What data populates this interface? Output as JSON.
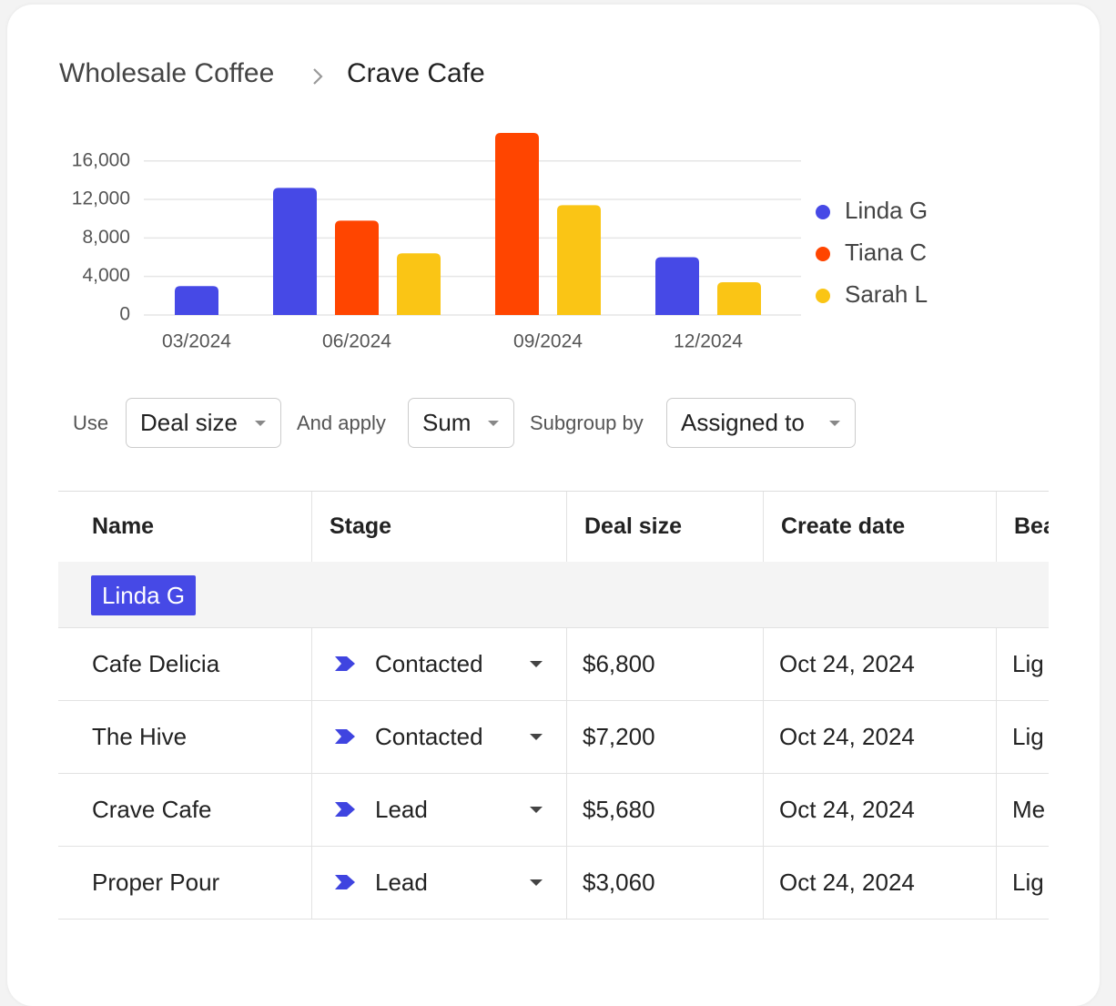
{
  "breadcrumb": {
    "parent": "Wholesale Coffee",
    "current": "Crave Cafe"
  },
  "chart_data": {
    "type": "bar",
    "categories": [
      "03/2024",
      "06/2024",
      "09/2024",
      "12/2024"
    ],
    "series": [
      {
        "name": "Linda G",
        "color": "#4649e6",
        "values": [
          3000,
          13200,
          null,
          6000
        ]
      },
      {
        "name": "Tiana C",
        "color": "#ff4500",
        "values": [
          null,
          9800,
          18900,
          null
        ]
      },
      {
        "name": "Sarah L",
        "color": "#fac515",
        "values": [
          null,
          6400,
          11400,
          3400
        ]
      }
    ],
    "ylim": [
      0,
      19000
    ],
    "yticks": [
      0,
      {
        "value": 4000,
        "label": "4,000"
      },
      {
        "value": 8000,
        "label": "8,000"
      },
      {
        "value": 12000,
        "label": "12,000"
      },
      {
        "value": 16000,
        "label": "16,000"
      }
    ],
    "grid": true,
    "legend": "right"
  },
  "controls": {
    "use_label": "Use",
    "use_value": "Deal size",
    "apply_label": "And apply",
    "apply_value": "Sum",
    "subgroup_label": "Subgroup by",
    "subgroup_value": "Assigned to"
  },
  "table": {
    "columns": [
      "Name",
      "Stage",
      "Deal size",
      "Create date",
      "Bea"
    ],
    "group": "Linda G",
    "rows": [
      [
        "Cafe Delicia",
        "Contacted",
        "$6,800",
        "Oct 24, 2024",
        "Lig"
      ],
      [
        "The Hive",
        "Contacted",
        "$7,200",
        "Oct 24, 2024",
        "Lig"
      ],
      [
        "Crave Cafe",
        "Lead",
        "$5,680",
        "Oct 24, 2024",
        "Me"
      ],
      [
        "Proper Pour",
        "Lead",
        "$3,060",
        "Oct 24, 2024",
        "Lig"
      ]
    ]
  }
}
